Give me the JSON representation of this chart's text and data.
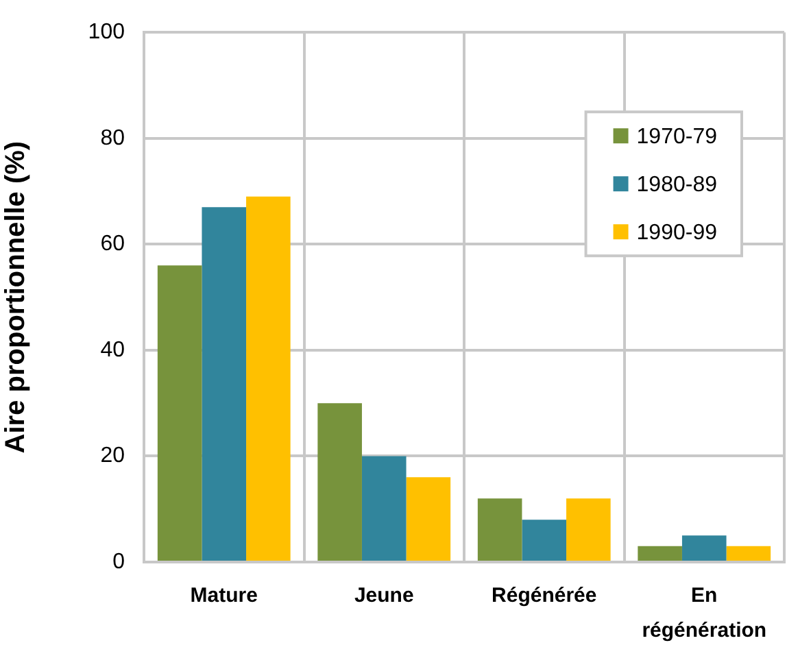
{
  "chart_data": {
    "type": "bar",
    "ylabel": "Aire proportionnelle (%)",
    "categories": [
      "Mature",
      "Jeune",
      "Régénérée",
      "En régénération"
    ],
    "series": [
      {
        "name": "1970-79",
        "color": "#77933c",
        "values": [
          56,
          30,
          12,
          3
        ]
      },
      {
        "name": "1980-89",
        "color": "#31859c",
        "values": [
          67,
          20,
          8,
          5
        ]
      },
      {
        "name": "1990-99",
        "color": "#ffc000",
        "values": [
          69,
          16,
          12,
          3
        ]
      }
    ],
    "ylim": [
      0,
      100
    ],
    "yticks": [
      0,
      20,
      40,
      60,
      80,
      100
    ],
    "grid": true,
    "legend": "top right"
  }
}
